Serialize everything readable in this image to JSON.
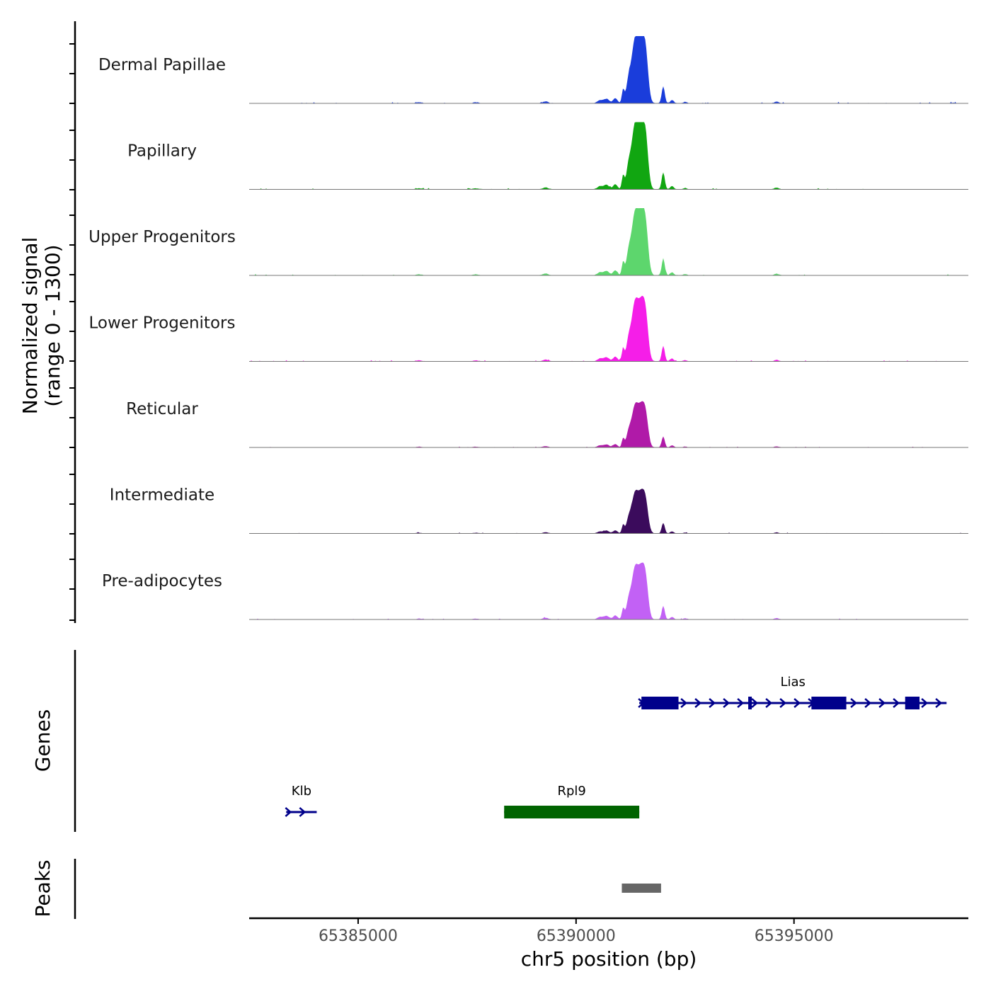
{
  "chart_data": {
    "type": "area",
    "title": "",
    "ylabel_line1": "Normalized signal",
    "ylabel_line2": "(range 0 - 1300)",
    "xlabel": "chr5 position (bp)",
    "xlim": [
      65382500,
      65399000
    ],
    "x_ticks": [
      65385000,
      65390000,
      65395000
    ],
    "x_tick_labels": [
      "65385000",
      "65390000",
      "65395000"
    ],
    "signal_range": [
      0,
      1300
    ],
    "peak_summits": [
      {
        "center": 65391350,
        "width": 80,
        "height": 1.0
      },
      {
        "center": 65391500,
        "width": 70,
        "height": 0.8
      },
      {
        "center": 65391600,
        "width": 60,
        "height": 0.66
      },
      {
        "center": 65391200,
        "width": 50,
        "height": 0.3
      },
      {
        "center": 65391080,
        "width": 30,
        "height": 0.22
      },
      {
        "center": 65390900,
        "width": 50,
        "height": 0.08
      },
      {
        "center": 65390700,
        "width": 60,
        "height": 0.07
      },
      {
        "center": 65390550,
        "width": 60,
        "height": 0.05
      },
      {
        "center": 65392000,
        "width": 35,
        "height": 0.27
      },
      {
        "center": 65392200,
        "width": 40,
        "height": 0.05
      },
      {
        "center": 65392500,
        "width": 40,
        "height": 0.02
      },
      {
        "center": 65389300,
        "width": 60,
        "height": 0.03
      },
      {
        "center": 65394600,
        "width": 50,
        "height": 0.025
      },
      {
        "center": 65386400,
        "width": 60,
        "height": 0.015
      },
      {
        "center": 65387700,
        "width": 60,
        "height": 0.015
      }
    ],
    "series": [
      {
        "name": "Dermal Papillae",
        "color": "#1a3ddb",
        "scale": 0.92
      },
      {
        "name": "Papillary",
        "color": "#11a611",
        "scale": 0.93
      },
      {
        "name": "Upper Progenitors",
        "color": "#5dd66d",
        "scale": 0.9
      },
      {
        "name": "Lower Progenitors",
        "color": "#f51ee8",
        "scale": 0.85
      },
      {
        "name": "Reticular",
        "color": "#b01aa8",
        "scale": 0.6
      },
      {
        "name": "Intermediate",
        "color": "#3b0b5c",
        "scale": 0.58
      },
      {
        "name": "Pre-adipocytes",
        "color": "#c261f5",
        "scale": 0.74
      }
    ],
    "genes_label": "Genes",
    "genes": [
      {
        "name": "Lias",
        "start": 65391450,
        "end": 65398500,
        "strand": "+",
        "color": "#00008b",
        "row": 1,
        "exons": [
          [
            65391500,
            65392350
          ],
          [
            65393950,
            65394020
          ],
          [
            65395400,
            65396200
          ],
          [
            65397550,
            65397880
          ]
        ]
      },
      {
        "name": "Klb",
        "start": 65383350,
        "end": 65384050,
        "strand": "+",
        "color": "#00008b",
        "row": 2,
        "exons": []
      },
      {
        "name": "Rpl9",
        "start": 65388350,
        "end": 65391450,
        "strand": "-",
        "color": "#006400",
        "row": 2,
        "exons": [
          [
            65388350,
            65391450
          ]
        ]
      }
    ],
    "peaks_label": "Peaks",
    "peaks": [
      {
        "start": 65391050,
        "end": 65391950,
        "color": "#666666"
      }
    ]
  }
}
